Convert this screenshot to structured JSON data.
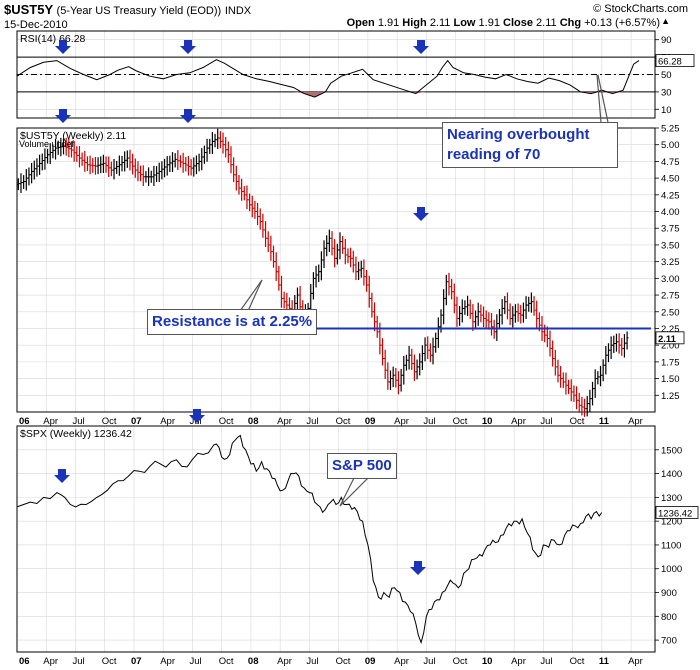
{
  "header": {
    "symbol": "$UST5Y",
    "description": "(5-Year US Treasury Yield (EOD))",
    "exchange": "INDX",
    "date": "15-Dec-2010",
    "open_label": "Open",
    "open": "1.91",
    "high_label": "High",
    "high": "2.11",
    "low_label": "Low",
    "low": "1.91",
    "close_label": "Close",
    "close": "2.11",
    "chg_label": "Chg",
    "chg": "+0.13 (+6.57%)",
    "brand": "© StockCharts.com"
  },
  "colors": {
    "up": "#000000",
    "down": "#cc0000",
    "accent": "#1a33b8",
    "rsi_fill": "#b07070",
    "grid": "#d8d8d8"
  },
  "x_axis_labels": [
    "06",
    "Apr",
    "Jul",
    "Oct",
    "07",
    "Apr",
    "Jul",
    "Oct",
    "08",
    "Apr",
    "Jul",
    "Oct",
    "09",
    "Apr",
    "Jul",
    "Oct",
    "10",
    "Apr",
    "Jul",
    "Oct",
    "11",
    "Apr"
  ],
  "chart_data": [
    {
      "type": "line",
      "title": "RSI(14) 66.28",
      "legend": "RSI(14)",
      "last_value_label": "66.28",
      "ylim": [
        0,
        100
      ],
      "yticks": [
        "90",
        "70",
        "50",
        "30",
        "10"
      ],
      "reference_lines": [
        70,
        50,
        30
      ],
      "points": [
        [
          0,
          48
        ],
        [
          5,
          58
        ],
        [
          10,
          64
        ],
        [
          15,
          66
        ],
        [
          20,
          57
        ],
        [
          25,
          50
        ],
        [
          30,
          44
        ],
        [
          35,
          50
        ],
        [
          38,
          55
        ],
        [
          42,
          59
        ],
        [
          45,
          54
        ],
        [
          50,
          48
        ],
        [
          55,
          45
        ],
        [
          60,
          50
        ],
        [
          65,
          52
        ],
        [
          70,
          58
        ],
        [
          75,
          67
        ],
        [
          78,
          63
        ],
        [
          85,
          50
        ],
        [
          90,
          45
        ],
        [
          95,
          42
        ],
        [
          100,
          38
        ],
        [
          104,
          35
        ],
        [
          108,
          28
        ],
        [
          112,
          24
        ],
        [
          116,
          30
        ],
        [
          118,
          40
        ],
        [
          122,
          48
        ],
        [
          126,
          52
        ],
        [
          130,
          56
        ],
        [
          134,
          44
        ],
        [
          138,
          40
        ],
        [
          142,
          36
        ],
        [
          146,
          32
        ],
        [
          150,
          28
        ],
        [
          154,
          38
        ],
        [
          158,
          48
        ],
        [
          160,
          58
        ],
        [
          162,
          66
        ],
        [
          164,
          58
        ],
        [
          168,
          52
        ],
        [
          172,
          50
        ],
        [
          176,
          47
        ],
        [
          180,
          45
        ],
        [
          184,
          50
        ],
        [
          188,
          45
        ],
        [
          192,
          42
        ],
        [
          196,
          40
        ],
        [
          200,
          46
        ],
        [
          204,
          43
        ],
        [
          208,
          38
        ],
        [
          210,
          34
        ],
        [
          212,
          30
        ],
        [
          216,
          28
        ],
        [
          220,
          32
        ],
        [
          224,
          28
        ],
        [
          228,
          32
        ],
        [
          232,
          62
        ],
        [
          234,
          66
        ]
      ]
    },
    {
      "type": "bar",
      "title": "$UST5Y (Weekly) 2.11",
      "legend": "$UST5Y (Weekly)",
      "legend_value": "2.11",
      "sub_legend": "Volume undef",
      "last_value_label": "2.11",
      "ylim": [
        1.0,
        5.25
      ],
      "yticks": [
        "5.25",
        "5.00",
        "4.75",
        "4.50",
        "4.25",
        "4.00",
        "3.75",
        "3.50",
        "3.25",
        "3.00",
        "2.75",
        "2.50",
        "2.25",
        "2.00",
        "1.75",
        "1.50",
        "1.25"
      ],
      "resistance_level": 2.25,
      "points": [
        [
          0,
          4.4
        ],
        [
          3,
          4.45
        ],
        [
          6,
          4.6
        ],
        [
          9,
          4.72
        ],
        [
          12,
          4.85
        ],
        [
          15,
          4.95
        ],
        [
          18,
          4.98
        ],
        [
          21,
          4.92
        ],
        [
          24,
          4.8
        ],
        [
          27,
          4.7
        ],
        [
          30,
          4.68
        ],
        [
          33,
          4.72
        ],
        [
          36,
          4.62
        ],
        [
          39,
          4.7
        ],
        [
          42,
          4.8
        ],
        [
          45,
          4.62
        ],
        [
          48,
          4.52
        ],
        [
          51,
          4.52
        ],
        [
          54,
          4.6
        ],
        [
          57,
          4.7
        ],
        [
          60,
          4.78
        ],
        [
          63,
          4.72
        ],
        [
          66,
          4.65
        ],
        [
          69,
          4.75
        ],
        [
          72,
          4.95
        ],
        [
          74,
          5.05
        ],
        [
          76,
          5.1
        ],
        [
          78,
          5.0
        ],
        [
          80,
          4.85
        ],
        [
          82,
          4.55
        ],
        [
          84,
          4.35
        ],
        [
          86,
          4.25
        ],
        [
          88,
          4.1
        ],
        [
          90,
          4.0
        ],
        [
          92,
          3.85
        ],
        [
          94,
          3.6
        ],
        [
          96,
          3.4
        ],
        [
          98,
          3.1
        ],
        [
          100,
          2.7
        ],
        [
          102,
          2.6
        ],
        [
          104,
          2.5
        ],
        [
          106,
          2.75
        ],
        [
          108,
          2.4
        ],
        [
          110,
          2.55
        ],
        [
          112,
          3.0
        ],
        [
          114,
          3.1
        ],
        [
          116,
          3.45
        ],
        [
          118,
          3.6
        ],
        [
          120,
          3.3
        ],
        [
          122,
          3.55
        ],
        [
          124,
          3.35
        ],
        [
          126,
          3.3
        ],
        [
          128,
          3.1
        ],
        [
          130,
          3.15
        ],
        [
          132,
          2.9
        ],
        [
          134,
          2.5
        ],
        [
          136,
          2.2
        ],
        [
          138,
          1.8
        ],
        [
          140,
          1.45
        ],
        [
          142,
          1.55
        ],
        [
          144,
          1.4
        ],
        [
          146,
          1.7
        ],
        [
          148,
          1.85
        ],
        [
          150,
          1.6
        ],
        [
          152,
          1.75
        ],
        [
          154,
          2.0
        ],
        [
          156,
          1.85
        ],
        [
          158,
          2.1
        ],
        [
          160,
          2.45
        ],
        [
          162,
          2.95
        ],
        [
          164,
          2.8
        ],
        [
          166,
          2.4
        ],
        [
          168,
          2.55
        ],
        [
          170,
          2.6
        ],
        [
          172,
          2.35
        ],
        [
          174,
          2.5
        ],
        [
          176,
          2.4
        ],
        [
          178,
          2.35
        ],
        [
          180,
          2.2
        ],
        [
          182,
          2.45
        ],
        [
          184,
          2.65
        ],
        [
          186,
          2.4
        ],
        [
          188,
          2.5
        ],
        [
          190,
          2.45
        ],
        [
          192,
          2.6
        ],
        [
          194,
          2.65
        ],
        [
          196,
          2.4
        ],
        [
          198,
          2.2
        ],
        [
          200,
          2.1
        ],
        [
          202,
          1.8
        ],
        [
          204,
          1.55
        ],
        [
          206,
          1.45
        ],
        [
          208,
          1.35
        ],
        [
          210,
          1.25
        ],
        [
          212,
          1.1
        ],
        [
          214,
          1.05
        ],
        [
          216,
          1.2
        ],
        [
          218,
          1.5
        ],
        [
          220,
          1.55
        ],
        [
          222,
          1.85
        ],
        [
          224,
          2.0
        ],
        [
          226,
          2.05
        ],
        [
          228,
          1.95
        ],
        [
          230,
          2.11
        ]
      ]
    },
    {
      "type": "line",
      "title": "$SPX (Weekly) 1236.42",
      "legend": "$SPX (Weekly)",
      "legend_value": "1236.42",
      "last_value_label": "1236.42",
      "ylim": [
        650,
        1600
      ],
      "yticks": [
        "1500",
        "1400",
        "1300",
        "1200",
        "1100",
        "1000",
        "900",
        "800",
        "700"
      ],
      "points": [
        [
          0,
          1260
        ],
        [
          5,
          1280
        ],
        [
          10,
          1300
        ],
        [
          15,
          1320
        ],
        [
          18,
          1300
        ],
        [
          22,
          1260
        ],
        [
          26,
          1270
        ],
        [
          30,
          1300
        ],
        [
          34,
          1330
        ],
        [
          38,
          1370
        ],
        [
          42,
          1390
        ],
        [
          46,
          1410
        ],
        [
          50,
          1430
        ],
        [
          54,
          1440
        ],
        [
          58,
          1450
        ],
        [
          62,
          1430
        ],
        [
          66,
          1460
        ],
        [
          70,
          1480
        ],
        [
          74,
          1520
        ],
        [
          76,
          1510
        ],
        [
          78,
          1460
        ],
        [
          80,
          1480
        ],
        [
          82,
          1540
        ],
        [
          84,
          1560
        ],
        [
          86,
          1500
        ],
        [
          88,
          1440
        ],
        [
          90,
          1410
        ],
        [
          92,
          1450
        ],
        [
          94,
          1420
        ],
        [
          96,
          1380
        ],
        [
          98,
          1350
        ],
        [
          100,
          1330
        ],
        [
          102,
          1370
        ],
        [
          104,
          1400
        ],
        [
          106,
          1390
        ],
        [
          108,
          1340
        ],
        [
          110,
          1320
        ],
        [
          112,
          1280
        ],
        [
          114,
          1260
        ],
        [
          116,
          1250
        ],
        [
          118,
          1280
        ],
        [
          120,
          1270
        ],
        [
          122,
          1300
        ],
        [
          124,
          1270
        ],
        [
          126,
          1250
        ],
        [
          128,
          1240
        ],
        [
          130,
          1200
        ],
        [
          132,
          1100
        ],
        [
          134,
          950
        ],
        [
          136,
          880
        ],
        [
          138,
          900
        ],
        [
          140,
          880
        ],
        [
          142,
          920
        ],
        [
          144,
          900
        ],
        [
          146,
          860
        ],
        [
          148,
          820
        ],
        [
          150,
          770
        ],
        [
          152,
          690
        ],
        [
          154,
          800
        ],
        [
          156,
          830
        ],
        [
          158,
          870
        ],
        [
          160,
          900
        ],
        [
          162,
          930
        ],
        [
          164,
          940
        ],
        [
          166,
          920
        ],
        [
          168,
          980
        ],
        [
          170,
          1000
        ],
        [
          172,
          1040
        ],
        [
          174,
          1060
        ],
        [
          176,
          1080
        ],
        [
          178,
          1100
        ],
        [
          180,
          1110
        ],
        [
          182,
          1140
        ],
        [
          184,
          1170
        ],
        [
          186,
          1180
        ],
        [
          188,
          1200
        ],
        [
          190,
          1210
        ],
        [
          192,
          1150
        ],
        [
          194,
          1080
        ],
        [
          196,
          1050
        ],
        [
          198,
          1100
        ],
        [
          200,
          1090
        ],
        [
          202,
          1120
        ],
        [
          204,
          1100
        ],
        [
          206,
          1140
        ],
        [
          208,
          1160
        ],
        [
          210,
          1180
        ],
        [
          212,
          1190
        ],
        [
          214,
          1220
        ],
        [
          216,
          1210
        ],
        [
          218,
          1240
        ],
        [
          220,
          1236.42
        ]
      ]
    }
  ],
  "annotations": {
    "rsi": "Nearing overbought reading of 70",
    "resistance": "Resistance is at 2.25%",
    "spx": "S&P 500"
  }
}
